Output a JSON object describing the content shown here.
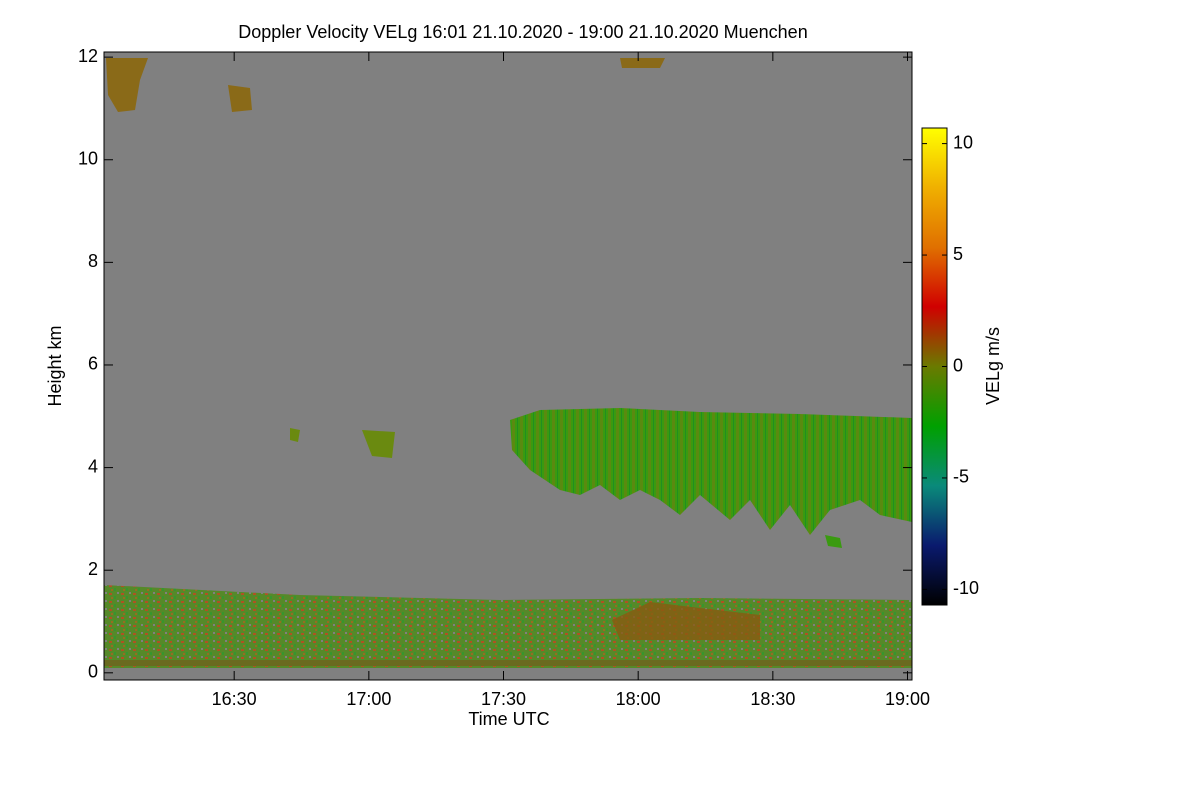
{
  "chart_data": {
    "type": "heatmap",
    "title": "Doppler Velocity VELg   16:01 21.10.2020 - 19:00 21.10.2020 Muenchen",
    "x_label": "Time UTC",
    "y_label": "Height km",
    "colorbar_label": "VELg m/s",
    "xlim": [
      961,
      1141
    ],
    "xticks": [
      {
        "value": 990,
        "label": "16:30"
      },
      {
        "value": 1020,
        "label": "17:00"
      },
      {
        "value": 1050,
        "label": "17:30"
      },
      {
        "value": 1080,
        "label": "18:00"
      },
      {
        "value": 1110,
        "label": "18:30"
      },
      {
        "value": 1140,
        "label": "19:00"
      }
    ],
    "ylim": [
      -0.14,
      12.1
    ],
    "yticks": [
      0,
      2,
      4,
      6,
      8,
      10,
      12
    ],
    "clim": [
      -10.7,
      10.7
    ],
    "cticks": [
      -10,
      -5,
      0,
      5,
      10
    ],
    "colormap": [
      "#000000",
      "#0a1a6e",
      "#0a8a7a",
      "#00a000",
      "#6a7a00",
      "#d00000",
      "#e07000",
      "#f0b000",
      "#ffff00"
    ],
    "background": "#808080"
  }
}
